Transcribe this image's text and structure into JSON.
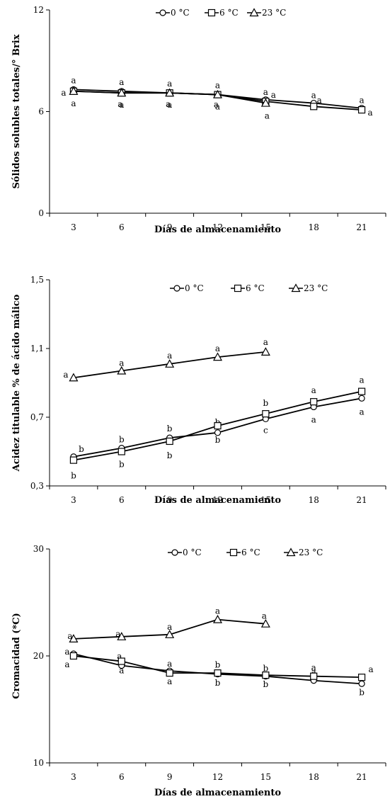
{
  "legend_symbols": [
    "circle",
    "square",
    "triangle"
  ],
  "chart_data": [
    {
      "type": "line",
      "title": "",
      "xlabel": "Días de almacenamiento",
      "ylabel": "Sólidos solubles totales/° Brix",
      "x": [
        3,
        6,
        9,
        12,
        15,
        18,
        21
      ],
      "x_ticks": [
        "3",
        "6",
        "9",
        "12",
        "15",
        "18",
        "21"
      ],
      "ylim": [
        0,
        12
      ],
      "y_ticks": [
        "0",
        "6",
        "12"
      ],
      "legend_position": "top",
      "series": [
        {
          "name": "0 °C",
          "marker": "circle",
          "values": [
            7.3,
            7.2,
            7.1,
            7.0,
            6.7,
            6.5,
            6.2
          ],
          "labels": [
            "a",
            "a",
            "a",
            "a",
            "a",
            "a",
            "a"
          ]
        },
        {
          "name": "6 °C",
          "marker": "square",
          "values": [
            7.2,
            7.1,
            7.1,
            7.0,
            6.6,
            6.3,
            6.1
          ],
          "labels": [
            "a",
            "a",
            "a",
            "a",
            "a",
            "a",
            "a"
          ]
        },
        {
          "name": "23 °C",
          "marker": "triangle",
          "values": [
            7.2,
            7.1,
            7.1,
            7.0,
            6.5,
            null,
            null
          ],
          "labels": [
            "a",
            "a",
            "a",
            "a",
            "a",
            "",
            ""
          ]
        }
      ]
    },
    {
      "type": "line",
      "title": "",
      "xlabel": "Días de almacenamiento",
      "ylabel": "Acidez titulable % de ácido málico",
      "x": [
        3,
        6,
        9,
        12,
        15,
        18,
        21
      ],
      "x_ticks": [
        "3",
        "6",
        "9",
        "12",
        "15",
        "18",
        "21"
      ],
      "ylim": [
        0.3,
        1.5
      ],
      "y_ticks": [
        "0,3",
        "0,7",
        "1,1",
        "1,5"
      ],
      "legend_position": "top",
      "series": [
        {
          "name": "0 °C",
          "marker": "circle",
          "values": [
            0.47,
            0.52,
            0.58,
            0.61,
            0.69,
            0.76,
            0.81
          ],
          "labels": [
            "b",
            "b",
            "b",
            "b",
            "c",
            "a",
            "a"
          ]
        },
        {
          "name": "6 °C",
          "marker": "square",
          "values": [
            0.45,
            0.5,
            0.56,
            0.65,
            0.72,
            0.79,
            0.85
          ],
          "labels": [
            "b",
            "b",
            "b",
            "b",
            "b",
            "a",
            "a"
          ]
        },
        {
          "name": "23 °C",
          "marker": "triangle",
          "values": [
            0.93,
            0.97,
            1.01,
            1.05,
            1.08,
            null,
            null
          ],
          "labels": [
            "a",
            "a",
            "a",
            "a",
            "a",
            "",
            ""
          ]
        }
      ]
    },
    {
      "type": "line",
      "title": "",
      "xlabel": "Días de almacenamiento",
      "ylabel": "Cromacidad (*C)",
      "x": [
        3,
        6,
        9,
        12,
        15,
        18,
        21
      ],
      "x_ticks": [
        "3",
        "6",
        "9",
        "12",
        "15",
        "18",
        "21"
      ],
      "ylim": [
        10,
        30
      ],
      "y_ticks": [
        "10",
        "20",
        "30"
      ],
      "legend_position": "top",
      "series": [
        {
          "name": "0 °C",
          "marker": "circle",
          "values": [
            20.2,
            19.1,
            18.6,
            18.3,
            18.1,
            17.7,
            17.4
          ],
          "labels": [
            "a",
            "a",
            "a",
            "b",
            "b",
            "a",
            "b"
          ]
        },
        {
          "name": "6 °C",
          "marker": "square",
          "values": [
            20.0,
            19.5,
            18.4,
            18.4,
            18.2,
            18.1,
            18.0
          ],
          "labels": [
            "a",
            "a",
            "a",
            "b",
            "b",
            "a",
            "a"
          ]
        },
        {
          "name": "23 °C",
          "marker": "triangle",
          "values": [
            21.6,
            21.8,
            22.0,
            23.4,
            23.0,
            null,
            null
          ],
          "labels": [
            "a",
            "a",
            "a",
            "a",
            "a",
            "",
            ""
          ]
        }
      ]
    }
  ]
}
